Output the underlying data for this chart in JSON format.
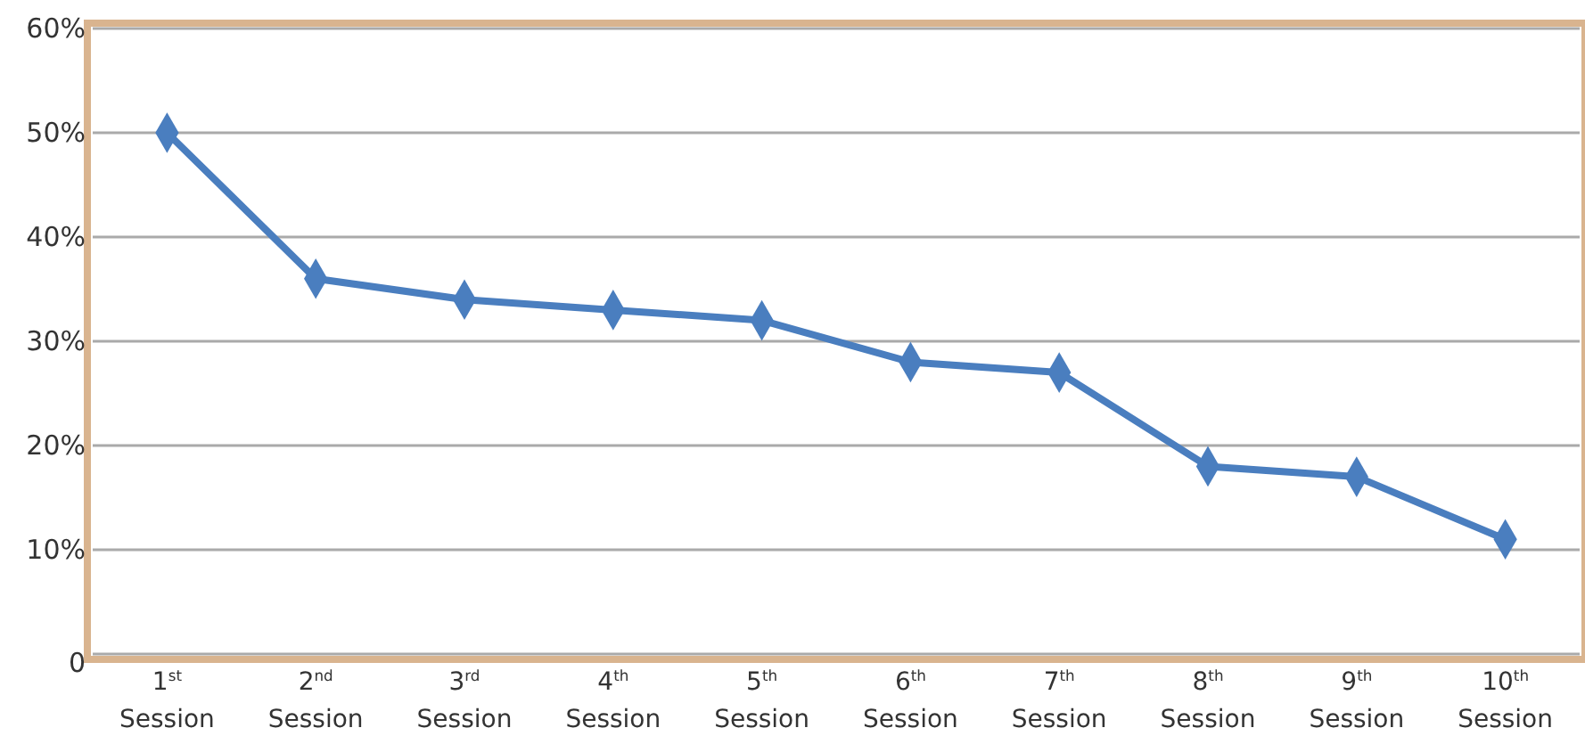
{
  "chart_data": {
    "type": "line",
    "categories": [
      "1$^{st}$ Session",
      "2$^{nd}$ Session",
      "3$^{rd}$ Session",
      "4$^{th}$ Session",
      "5$^{th}$ Session",
      "6$^{th}$ Session",
      "7$^{th}$ Session",
      "8$^{th}$ Session",
      "9$^{th}$ Session",
      "10$^{th}$ Session"
    ],
    "series": [
      {
        "color": "#4a7ebf",
        "values": [
          50,
          36,
          34,
          33,
          32,
          28,
          27,
          18,
          17,
          11
        ]
      }
    ],
    "ylim": [
      0,
      60
    ],
    "yticks": [
      0,
      {
        "value": 10,
        "label": "10%"
      },
      {
        "value": 20,
        "label": "20%"
      },
      {
        "value": 30,
        "label": "30%"
      },
      {
        "value": 40,
        "label": "40%"
      },
      {
        "value": 50,
        "label": "50%"
      },
      {
        "value": 60,
        "label": "60%"
      }
    ],
    "grid": "y",
    "marker": "diamond",
    "line_style": "solid"
  }
}
